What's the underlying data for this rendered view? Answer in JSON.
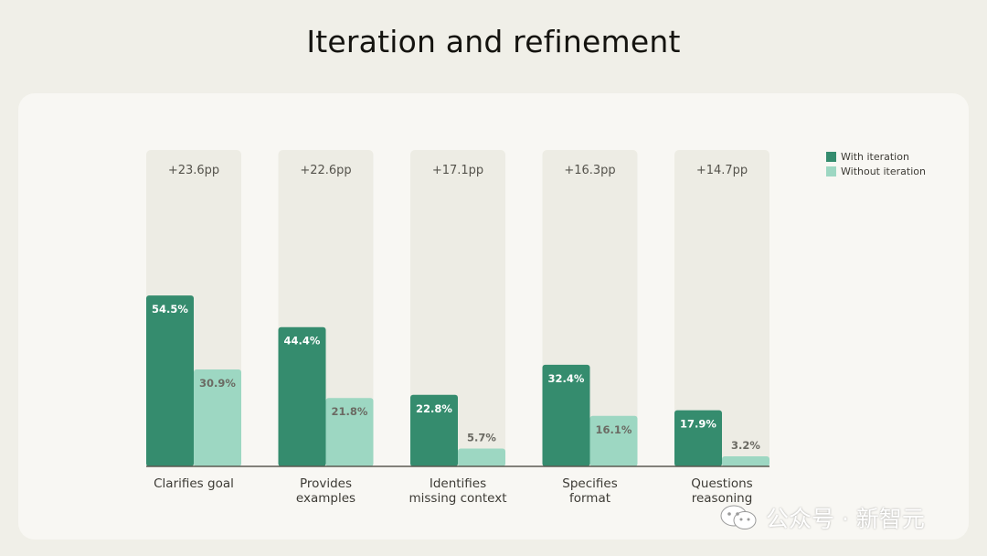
{
  "page": {
    "title": "Iteration and refinement"
  },
  "colors": {
    "page_bg": "#f0efe8",
    "card_bg": "#f8f7f3",
    "column_bg": "#edece4",
    "with_iteration": "#358c6e",
    "without_iteration": "#9dd7c2"
  },
  "legend": {
    "with_label": "With iteration",
    "without_label": "Without iteration"
  },
  "watermark": {
    "text": "公众号 · 新智元",
    "icon": "wechat-icon"
  },
  "chart_data": {
    "type": "bar",
    "title": "Iteration and refinement",
    "categories": [
      [
        "Clarifies goal"
      ],
      [
        "Provides",
        "examples"
      ],
      [
        "Identifies",
        "missing context"
      ],
      [
        "Specifies",
        "format"
      ],
      [
        "Questions",
        "reasoning"
      ]
    ],
    "series": [
      {
        "name": "With iteration",
        "values": [
          54.5,
          44.4,
          22.8,
          32.4,
          17.9
        ],
        "labels": [
          "54.5%",
          "44.4%",
          "22.8%",
          "32.4%",
          "17.9%"
        ]
      },
      {
        "name": "Without iteration",
        "values": [
          30.9,
          21.8,
          5.7,
          16.1,
          3.2
        ],
        "labels": [
          "30.9%",
          "21.8%",
          "5.7%",
          "16.1%",
          "3.2%"
        ]
      }
    ],
    "differences": [
      "+23.6pp",
      "+22.6pp",
      "+17.1pp",
      "+16.3pp",
      "+14.7pp"
    ],
    "ylim": [
      0,
      100
    ],
    "grid": false,
    "legend_position": "top-right",
    "xlabel": "",
    "ylabel": ""
  }
}
